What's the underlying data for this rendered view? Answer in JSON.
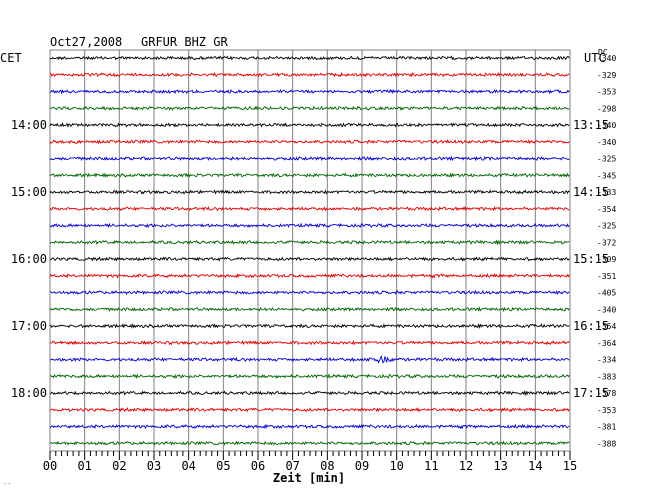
{
  "header": {
    "date": "Oct27,2008",
    "station": "GRFUR BHZ GR"
  },
  "left_tz": "CET",
  "right_tz": "UTC",
  "dc_header": "DC",
  "xlabel": "Zeit [min]",
  "footer_mark": "′′",
  "colors": {
    "trace_cycle": [
      "#000000",
      "#e00000",
      "#0000d0",
      "#006400"
    ],
    "grid": "#808080"
  },
  "chart_data": {
    "type": "line",
    "title": "Oct27,2008  GRFUR BHZ GR",
    "xlabel": "Zeit [min]",
    "x_ticks": [
      "00",
      "01",
      "02",
      "03",
      "04",
      "05",
      "06",
      "07",
      "08",
      "09",
      "10",
      "11",
      "12",
      "13",
      "14",
      "15"
    ],
    "xlim": [
      0,
      15
    ],
    "rows_per_hour": 4,
    "row_minutes": 15,
    "left_hour_labels": [
      "14:00",
      "15:00",
      "16:00",
      "17:00",
      "18:00"
    ],
    "right_hour_labels": [
      "13:15",
      "14:15",
      "15:15",
      "16:15",
      "17:15"
    ],
    "dc_offsets": [
      -340,
      -329,
      -353,
      -298,
      -340,
      -340,
      -325,
      -345,
      -333,
      -354,
      -325,
      -372,
      -309,
      -351,
      -405,
      -340,
      -354,
      -364,
      -334,
      -383,
      -378,
      -353,
      -381,
      -388
    ],
    "events": [
      {
        "row": 18,
        "minute_start": 9.0,
        "minute_end": 10.0,
        "note": "larger amplitude burst"
      }
    ]
  }
}
